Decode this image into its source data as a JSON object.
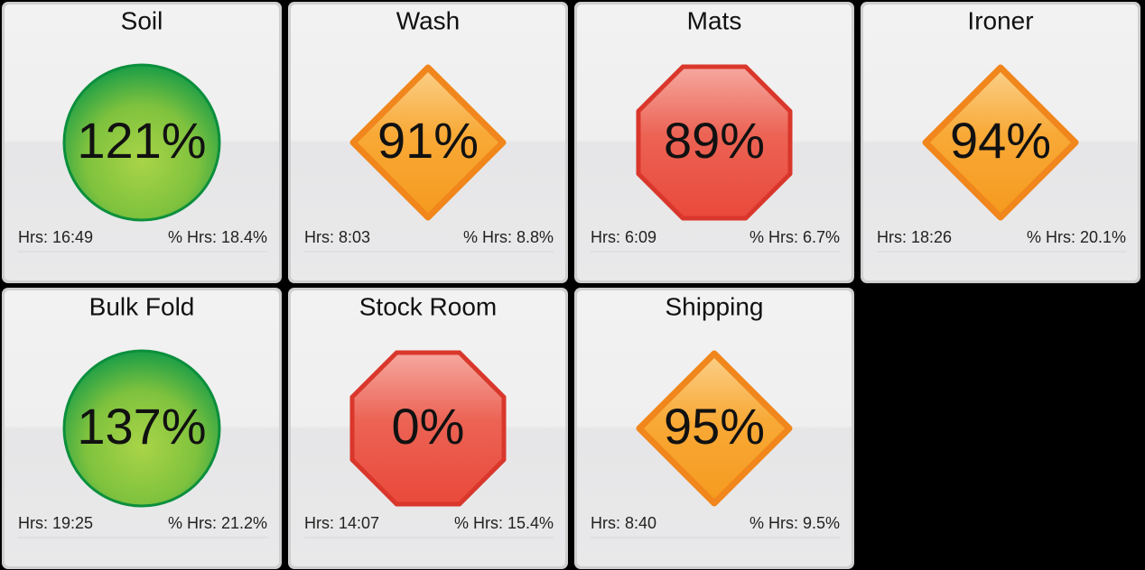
{
  "tiles": [
    {
      "title": "Soil",
      "value": "121%",
      "shape": "circle",
      "hrs": "Hrs: 16:49",
      "pct_hrs": "% Hrs: 18.4%"
    },
    {
      "title": "Wash",
      "value": "91%",
      "shape": "diamond",
      "hrs": "Hrs: 8:03",
      "pct_hrs": "% Hrs: 8.8%"
    },
    {
      "title": "Mats",
      "value": "89%",
      "shape": "octagon",
      "hrs": "Hrs: 6:09",
      "pct_hrs": "% Hrs: 6.7%"
    },
    {
      "title": "Ironer",
      "value": "94%",
      "shape": "diamond",
      "hrs": "Hrs: 18:26",
      "pct_hrs": "% Hrs: 20.1%"
    },
    {
      "title": "Bulk Fold",
      "value": "137%",
      "shape": "circle",
      "hrs": "Hrs: 19:25",
      "pct_hrs": "% Hrs: 21.2%"
    },
    {
      "title": "Stock Room",
      "value": "0%",
      "shape": "octagon",
      "hrs": "Hrs: 14:07",
      "pct_hrs": "% Hrs: 15.4%"
    },
    {
      "title": "Shipping",
      "value": "95%",
      "shape": "diamond",
      "hrs": "Hrs: 8:40",
      "pct_hrs": "% Hrs: 9.5%"
    }
  ]
}
